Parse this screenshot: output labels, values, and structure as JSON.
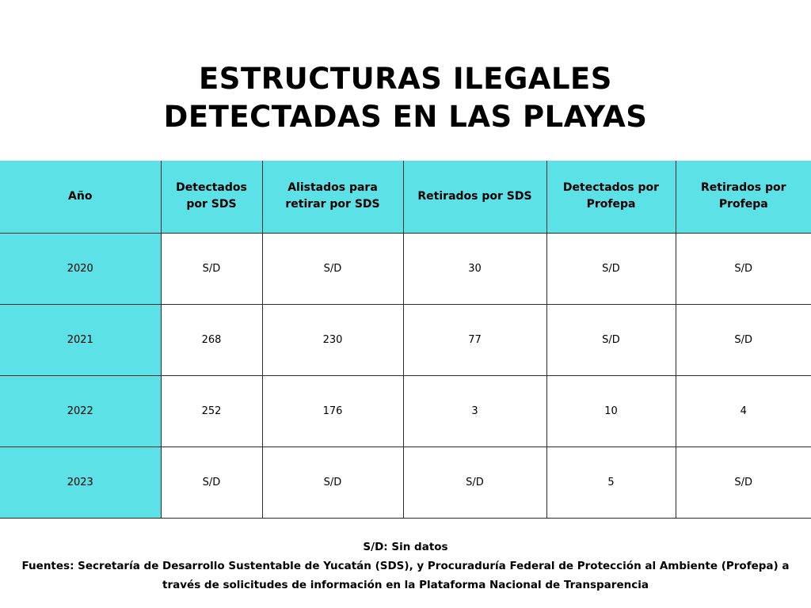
{
  "title": {
    "line1": "ESTRUCTURAS ILEGALES",
    "line2": "DETECTADAS EN LAS PLAYAS"
  },
  "table": {
    "headers": [
      "Año",
      "Detectados por SDS",
      "Alistados para retirar por SDS",
      "Retirados por SDS",
      "Detectados por Profepa",
      "Retirados por Profepa"
    ],
    "rows": [
      [
        "2020",
        "S/D",
        "S/D",
        "30",
        "S/D",
        "S/D"
      ],
      [
        "2021",
        "268",
        "230",
        "77",
        "S/D",
        "S/D"
      ],
      [
        "2022",
        "252",
        "176",
        "3",
        "10",
        "4"
      ],
      [
        "2023",
        "S/D",
        "S/D",
        "S/D",
        "5",
        "S/D"
      ]
    ]
  },
  "footer": {
    "legend": "S/D: Sin datos",
    "sources": "Fuentes: Secretaría de Desarrollo Sustentable de Yucatán (SDS), y Procuraduría Federal de Protección al Ambiente (Profepa) a través de solicitudes de información en la Plataforma Nacional de Transparencia"
  },
  "colors": {
    "accent": "#5ce1e6",
    "border": "#2b2b2b",
    "background": "#ffffff",
    "text": "#000000"
  }
}
